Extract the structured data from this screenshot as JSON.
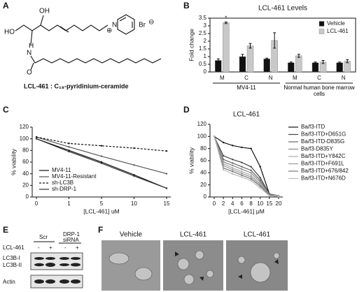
{
  "panel_labels": [
    "A",
    "B",
    "C",
    "D",
    "E",
    "F"
  ],
  "structure": {
    "atoms": [
      "OH",
      "HO",
      "H",
      "N",
      "O",
      "N",
      "Br"
    ],
    "charges": [
      "⊕",
      "⊖"
    ],
    "name": "LCL-461 : C₁₈-pyridinium-ceramide"
  },
  "chart_data": [
    {
      "type": "bar",
      "title": "LCL-461 Levels",
      "y_label": "Fold change",
      "categories": [
        "M",
        "C",
        "N",
        "M",
        "C",
        "N"
      ],
      "group_labels": [
        "MV4-11",
        "Normal human bone marrow cells"
      ],
      "series": [
        {
          "name": "Vehicle",
          "color": "#111111",
          "values": [
            0.75,
            1.0,
            0.85,
            0.6,
            0.6,
            0.6
          ],
          "errors": [
            0.1,
            0.15,
            0.05,
            0.05,
            0.05,
            0.05
          ]
        },
        {
          "name": "LCL-461",
          "color": "#c8c8c8",
          "values": [
            3.2,
            1.7,
            2.05,
            1.05,
            0.65,
            0.7
          ],
          "errors": [
            0.05,
            0.15,
            0.5,
            0.1,
            0.1,
            0.1
          ]
        }
      ],
      "annotation": "*",
      "ylim": [
        0,
        3.5
      ],
      "yticks": [
        0,
        0.5,
        1,
        1.5,
        2,
        2.5,
        3,
        3.5
      ],
      "legend": "upper right"
    },
    {
      "type": "line",
      "x_label": "[LCL-461] uM",
      "y_label": "% viability",
      "categories": [
        "0",
        "1",
        "5",
        "10",
        "15"
      ],
      "series": [
        {
          "name": "MV4-11",
          "color": "#111111",
          "style": "solid",
          "values": [
            100,
            80,
            60,
            38,
            15
          ]
        },
        {
          "name": "MV4-11-Resistant",
          "color": "#555555",
          "style": "solid",
          "values": [
            103,
            86,
            70,
            55,
            40
          ]
        },
        {
          "name": "sh-LC3B",
          "color": "#111111",
          "style": "dashed",
          "values": [
            103,
            92,
            88,
            84,
            79
          ]
        },
        {
          "name": "sh-DRP-1",
          "color": "#333333",
          "style": "solid",
          "values": [
            100,
            78,
            58,
            36,
            15
          ]
        }
      ],
      "ylim": [
        0,
        120
      ],
      "yticks": [
        0,
        20,
        40,
        60,
        80,
        100,
        120
      ],
      "legend": "lower left"
    },
    {
      "type": "line",
      "title": "LCL-461",
      "x_label": "[LCL-461] μM",
      "y_label": "% viability",
      "categories": [
        "0",
        "2",
        "4",
        "6",
        "8",
        "10",
        "15",
        "20"
      ],
      "series": [
        {
          "name": "Ba/f3-ITD",
          "color": "#111111",
          "style": "solid",
          "values": [
            100,
            90,
            85,
            82,
            80,
            50,
            5,
            2
          ]
        },
        {
          "name": "Ba/f3-ITD+D651G",
          "color": "#444444",
          "style": "solid",
          "values": [
            100,
            68,
            62,
            57,
            50,
            32,
            5,
            2
          ]
        },
        {
          "name": "Ba/f3-ITD-D835G",
          "color": "#666666",
          "style": "solid",
          "values": [
            100,
            62,
            56,
            50,
            44,
            28,
            4,
            2
          ]
        },
        {
          "name": "Ba/f3-D835Y",
          "color": "#888888",
          "style": "solid",
          "values": [
            100,
            58,
            52,
            46,
            40,
            25,
            4,
            2
          ]
        },
        {
          "name": "Ba/f3-ITD+Y842C",
          "color": "#aaaaaa",
          "style": "solid",
          "values": [
            100,
            55,
            48,
            42,
            36,
            22,
            3,
            2
          ]
        },
        {
          "name": "Ba/f3-ITD+F691L",
          "color": "#999999",
          "style": "solid",
          "values": [
            100,
            52,
            45,
            39,
            33,
            20,
            3,
            1
          ]
        },
        {
          "name": "Ba/f3-ITD+676/842",
          "color": "#777777",
          "style": "solid",
          "values": [
            100,
            48,
            42,
            36,
            30,
            18,
            3,
            1
          ]
        },
        {
          "name": "Ba/f3-ITD+N676D",
          "color": "#bbbbbb",
          "style": "solid",
          "values": [
            100,
            45,
            38,
            33,
            27,
            15,
            2,
            1
          ]
        }
      ],
      "ylim": [
        0,
        120
      ],
      "yticks": [
        0,
        20,
        40,
        60,
        80,
        100,
        120
      ],
      "legend": "right"
    }
  ],
  "blot": {
    "columns": [
      "Scr",
      "DRP-1",
      "siRNA"
    ],
    "treatment": "LCL-461",
    "signs": [
      "-",
      "+",
      "-",
      "+"
    ],
    "rows": [
      "LC3B-I",
      "LC3B-II",
      "Actin"
    ]
  },
  "micrographs": [
    "Vehicle",
    "LCL-461",
    "LCL-461"
  ]
}
